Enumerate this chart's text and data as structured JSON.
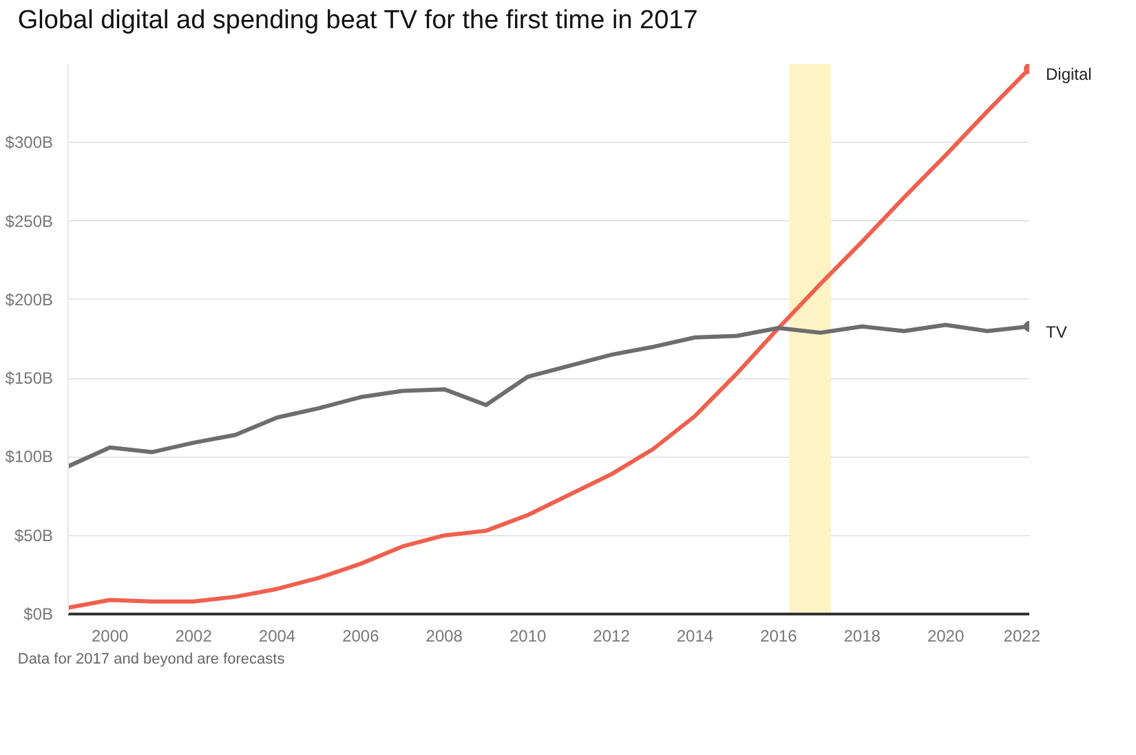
{
  "chart_data": {
    "type": "line",
    "title": "Global digital ad spending beat TV for the first time in 2017",
    "x": [
      1999,
      2000,
      2001,
      2002,
      2003,
      2004,
      2005,
      2006,
      2007,
      2008,
      2009,
      2010,
      2011,
      2012,
      2013,
      2014,
      2015,
      2016,
      2017,
      2018,
      2019,
      2020,
      2021,
      2022
    ],
    "series": [
      {
        "name": "Digital",
        "color": "#f0604d",
        "values": [
          4,
          9,
          8,
          8,
          11,
          16,
          23,
          32,
          43,
          50,
          53,
          63,
          76,
          89,
          105,
          126,
          153,
          182,
          210,
          237,
          265,
          292,
          320,
          347
        ]
      },
      {
        "name": "TV",
        "color": "#6d6d6d",
        "values": [
          94,
          106,
          103,
          109,
          114,
          125,
          131,
          138,
          142,
          143,
          133,
          151,
          158,
          165,
          170,
          176,
          177,
          182,
          179,
          183,
          180,
          184,
          180,
          183
        ]
      }
    ],
    "xlim": [
      1999,
      2022
    ],
    "ylim": [
      0,
      350
    ],
    "xticks": [
      2000,
      2002,
      2004,
      2006,
      2008,
      2010,
      2012,
      2014,
      2016,
      2018,
      2020,
      2022
    ],
    "yticks": [
      {
        "value": 0,
        "label": "$0B"
      },
      {
        "value": 50,
        "label": "$50B"
      },
      {
        "value": 100,
        "label": "$100B"
      },
      {
        "value": 150,
        "label": "$150B"
      },
      {
        "value": 200,
        "label": "$200B"
      },
      {
        "value": 250,
        "label": "$250B"
      },
      {
        "value": 300,
        "label": "$300B"
      }
    ],
    "bands": [
      {
        "axis": "x",
        "from": 2016.25,
        "to": 2017.25,
        "label": null,
        "color": "#fdf3c4"
      }
    ],
    "grid": "y",
    "annotations": [
      "Data for 2017 and beyond are forecasts"
    ]
  }
}
